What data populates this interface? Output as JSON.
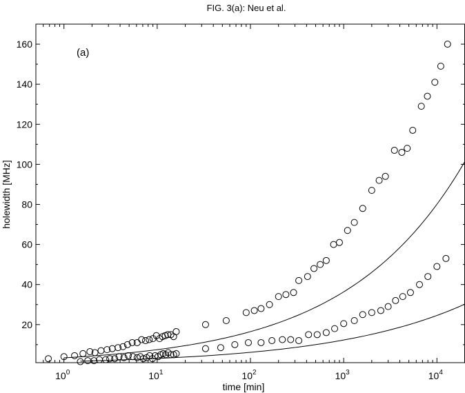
{
  "figure_title": "FIG. 3(a): Neu et al.",
  "chart_data": {
    "type": "scatter",
    "panel_label": "(a)",
    "xlabel": "time [min]",
    "ylabel": "holewidth [MHz]",
    "x_scale": "log",
    "xlim": [
      0.5,
      20000
    ],
    "ylim": [
      1,
      170
    ],
    "y_ticks": [
      20,
      40,
      60,
      80,
      100,
      120,
      140,
      160
    ],
    "x_ticks": [
      {
        "value": 1,
        "base": "10",
        "exp": "0"
      },
      {
        "value": 10,
        "base": "10",
        "exp": "1"
      },
      {
        "value": 100,
        "base": "10",
        "exp": "2"
      },
      {
        "value": 1000,
        "base": "10",
        "exp": "3"
      },
      {
        "value": 10000,
        "base": "10",
        "exp": "4"
      }
    ],
    "grid": false,
    "series": [
      {
        "marker": "open-circle",
        "points": [
          [
            0.68,
            3
          ],
          [
            1.0,
            4
          ],
          [
            1.3,
            4.5
          ],
          [
            1.6,
            5.5
          ],
          [
            1.9,
            6.5
          ],
          [
            2.15,
            6
          ],
          [
            2.5,
            7
          ],
          [
            2.9,
            7.5
          ],
          [
            3.3,
            8
          ],
          [
            3.8,
            8.5
          ],
          [
            4.3,
            9
          ],
          [
            4.8,
            10
          ],
          [
            5.4,
            11
          ],
          [
            6.1,
            11
          ],
          [
            6.8,
            12.5
          ],
          [
            7.5,
            12
          ],
          [
            8.2,
            12.5
          ],
          [
            9.0,
            13
          ],
          [
            9.8,
            14.5
          ],
          [
            10.6,
            13
          ],
          [
            11.4,
            14
          ],
          [
            12.2,
            14.5
          ],
          [
            13.0,
            15
          ],
          [
            14.0,
            15
          ],
          [
            15.0,
            14
          ],
          [
            16.0,
            16.5
          ],
          [
            33,
            20
          ],
          [
            55,
            22
          ],
          [
            90,
            26
          ],
          [
            110,
            27
          ],
          [
            130,
            28
          ],
          [
            160,
            30
          ],
          [
            200,
            34
          ],
          [
            240,
            35
          ],
          [
            290,
            36
          ],
          [
            330,
            42
          ],
          [
            410,
            44
          ],
          [
            480,
            48
          ],
          [
            560,
            50
          ],
          [
            650,
            52
          ],
          [
            780,
            60
          ],
          [
            900,
            61
          ],
          [
            1100,
            67
          ],
          [
            1300,
            71
          ],
          [
            1600,
            78
          ],
          [
            2000,
            87
          ],
          [
            2400,
            92
          ],
          [
            2800,
            94
          ],
          [
            3500,
            107
          ],
          [
            4200,
            106
          ],
          [
            4800,
            108
          ],
          [
            5500,
            117
          ],
          [
            6800,
            129
          ],
          [
            7900,
            134
          ],
          [
            9500,
            141
          ],
          [
            11000,
            149
          ],
          [
            13000,
            160
          ]
        ]
      },
      {
        "marker": "open-circle",
        "points": [
          [
            1.5,
            1.5
          ],
          [
            1.8,
            2
          ],
          [
            2.1,
            2
          ],
          [
            2.4,
            2.5
          ],
          [
            2.8,
            2.5
          ],
          [
            3.1,
            3
          ],
          [
            3.5,
            3
          ],
          [
            3.9,
            4
          ],
          [
            4.4,
            3.5
          ],
          [
            4.9,
            4.5
          ],
          [
            5.5,
            4
          ],
          [
            6.1,
            3.5
          ],
          [
            6.6,
            4
          ],
          [
            7.1,
            3
          ],
          [
            7.7,
            3.5
          ],
          [
            8.3,
            4.5
          ],
          [
            8.9,
            3
          ],
          [
            9.5,
            4.5
          ],
          [
            10.2,
            4
          ],
          [
            10.9,
            5
          ],
          [
            11.6,
            5.5
          ],
          [
            12.3,
            5
          ],
          [
            13.1,
            6
          ],
          [
            14.0,
            5
          ],
          [
            15.0,
            5
          ],
          [
            16.0,
            5.5
          ],
          [
            33,
            8
          ],
          [
            48,
            8.5
          ],
          [
            68,
            10
          ],
          [
            95,
            11
          ],
          [
            130,
            11
          ],
          [
            170,
            12
          ],
          [
            220,
            12.5
          ],
          [
            270,
            12.5
          ],
          [
            330,
            12
          ],
          [
            420,
            15
          ],
          [
            520,
            15
          ],
          [
            650,
            16
          ],
          [
            800,
            18
          ],
          [
            1000,
            20.5
          ],
          [
            1300,
            22
          ],
          [
            1600,
            25
          ],
          [
            2000,
            26
          ],
          [
            2500,
            27
          ],
          [
            3000,
            29
          ],
          [
            3600,
            32
          ],
          [
            4300,
            34
          ],
          [
            5200,
            36
          ],
          [
            6500,
            40
          ],
          [
            8000,
            44
          ],
          [
            10000,
            49
          ],
          [
            12500,
            53
          ]
        ]
      }
    ],
    "fit_curves": [
      {
        "x_range": [
          1,
          20000
        ],
        "shape": "power-law"
      },
      {
        "x_range": [
          1.5,
          20000
        ],
        "shape": "power-law"
      }
    ]
  }
}
